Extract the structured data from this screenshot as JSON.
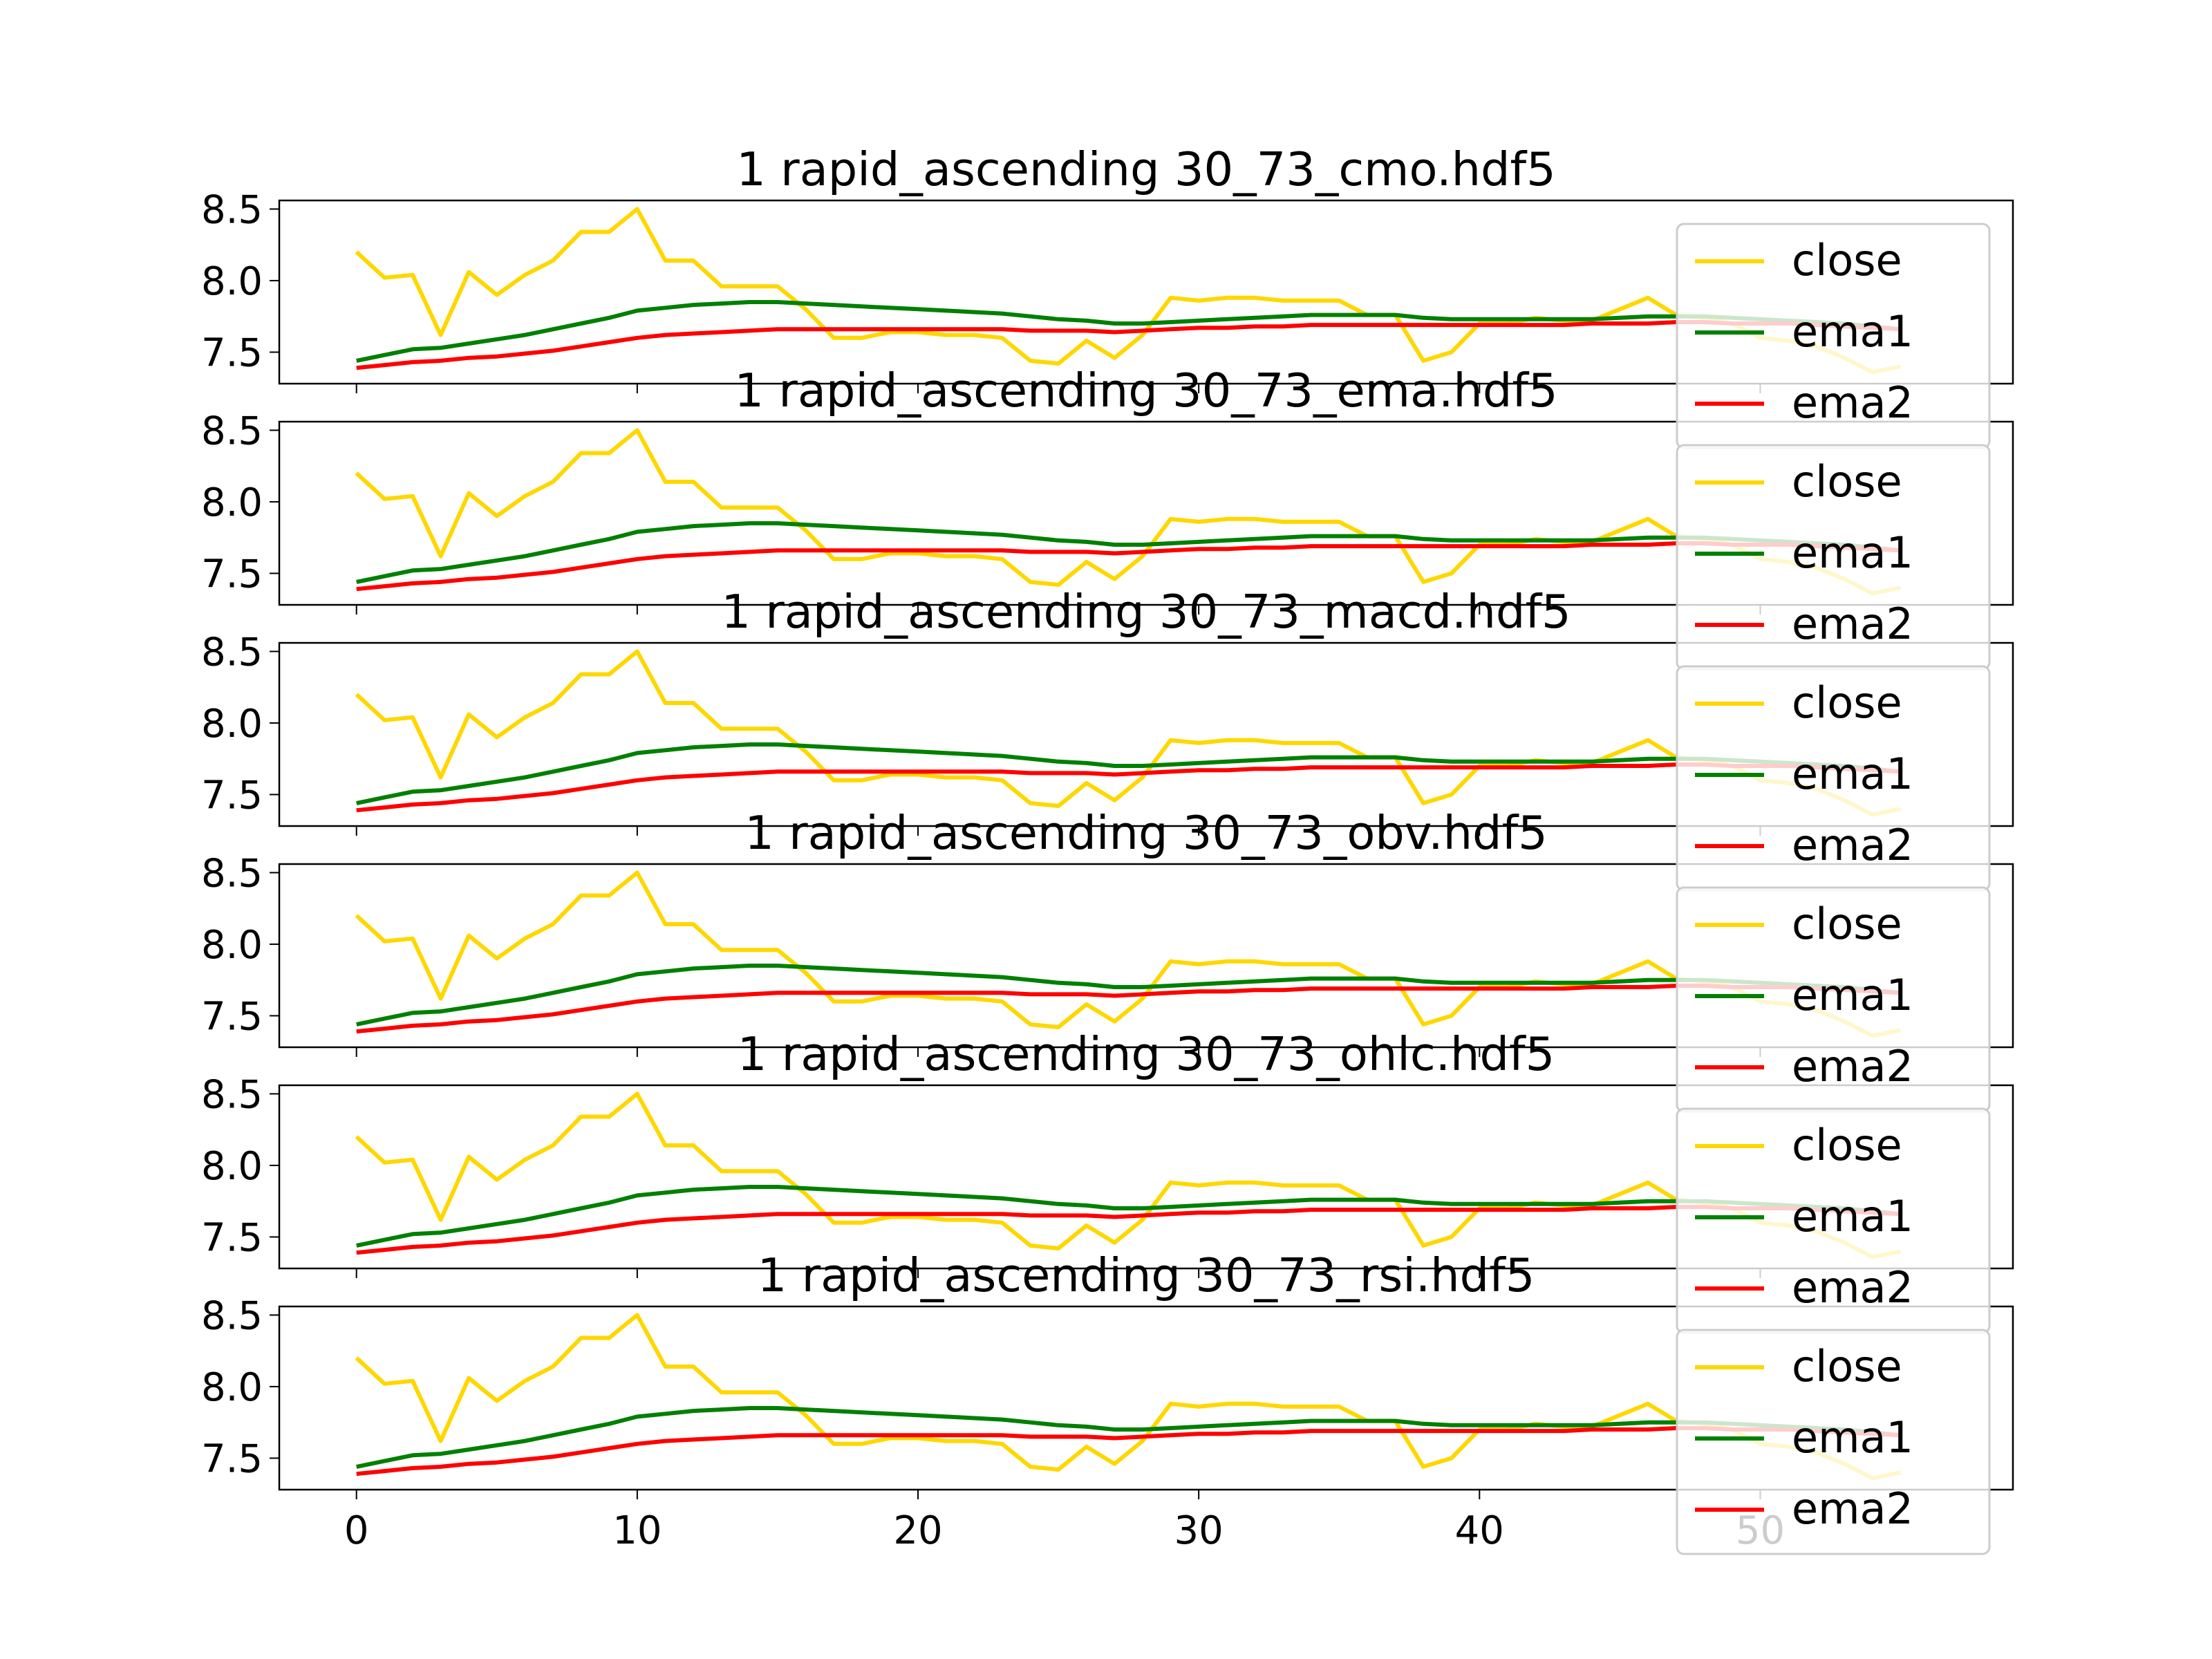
{
  "chart_data": [
    {
      "type": "line",
      "title": "1 rapid_ascending 30_73_cmo.hdf5",
      "x_ticks": [
        0,
        10,
        20,
        30,
        40,
        50
      ],
      "y_ticks": [
        "7.5",
        "8.0",
        "8.5"
      ],
      "x_tick_labels_shown": false,
      "legend": [
        "close",
        "ema1",
        "ema2"
      ],
      "legend_position": "right"
    },
    {
      "type": "line",
      "title": "1 rapid_ascending 30_73_ema.hdf5",
      "x_ticks": [
        0,
        10,
        20,
        30,
        40,
        50
      ],
      "y_ticks": [
        "7.5",
        "8.0",
        "8.5"
      ],
      "x_tick_labels_shown": false,
      "legend": [
        "close",
        "ema1",
        "ema2"
      ],
      "legend_position": "right"
    },
    {
      "type": "line",
      "title": "1 rapid_ascending 30_73_macd.hdf5",
      "x_ticks": [
        0,
        10,
        20,
        30,
        40,
        50
      ],
      "y_ticks": [
        "7.5",
        "8.0",
        "8.5"
      ],
      "x_tick_labels_shown": false,
      "legend": [
        "close",
        "ema1",
        "ema2"
      ],
      "legend_position": "right"
    },
    {
      "type": "line",
      "title": "1 rapid_ascending 30_73_obv.hdf5",
      "x_ticks": [
        0,
        10,
        20,
        30,
        40,
        50
      ],
      "y_ticks": [
        "7.5",
        "8.0",
        "8.5"
      ],
      "x_tick_labels_shown": false,
      "legend": [
        "close",
        "ema1",
        "ema2"
      ],
      "legend_position": "right"
    },
    {
      "type": "line",
      "title": "1 rapid_ascending 30_73_ohlc.hdf5",
      "x_ticks": [
        0,
        10,
        20,
        30,
        40,
        50
      ],
      "y_ticks": [
        "7.5",
        "8.0",
        "8.5"
      ],
      "x_tick_labels_shown": false,
      "legend": [
        "close",
        "ema1",
        "ema2"
      ],
      "legend_position": "right"
    },
    {
      "type": "line",
      "title": "1 rapid_ascending 30_73_rsi.hdf5",
      "x_ticks": [
        0,
        10,
        20,
        30,
        40,
        50
      ],
      "y_ticks": [
        "7.5",
        "8.0",
        "8.5"
      ],
      "x_tick_labels_shown": true,
      "legend": [
        "close",
        "ema1",
        "ema2"
      ],
      "legend_position": "right"
    }
  ],
  "shared": {
    "x": [
      0,
      1,
      2,
      3,
      4,
      5,
      6,
      7,
      8,
      9,
      10,
      11,
      12,
      13,
      14,
      15,
      16,
      17,
      18,
      19,
      20,
      21,
      22,
      23,
      24,
      25,
      26,
      27,
      28,
      29,
      30,
      31,
      32,
      33,
      34,
      35,
      36,
      37,
      38,
      39,
      40,
      41,
      42,
      43,
      44,
      45,
      46,
      47,
      48,
      49,
      50,
      51,
      52,
      53,
      54,
      55
    ],
    "xlim": [
      -2.75,
      59.0
    ],
    "ylim": [
      7.28,
      8.56
    ],
    "series": [
      {
        "name": "close",
        "color": "#FFD700",
        "values": [
          8.2,
          8.02,
          8.04,
          7.62,
          8.06,
          7.9,
          8.04,
          8.14,
          8.34,
          8.34,
          8.5,
          8.14,
          8.14,
          7.96,
          7.96,
          7.96,
          7.8,
          7.6,
          7.6,
          7.64,
          7.64,
          7.62,
          7.62,
          7.6,
          7.44,
          7.42,
          7.58,
          7.46,
          7.62,
          7.88,
          7.86,
          7.88,
          7.88,
          7.86,
          7.86,
          7.86,
          7.76,
          7.76,
          7.44,
          7.5,
          7.7,
          7.7,
          7.74,
          7.72,
          7.72,
          7.8,
          7.88,
          7.76,
          7.74,
          7.7,
          7.6,
          7.58,
          7.54,
          7.46,
          7.36,
          7.4
        ]
      },
      {
        "name": "ema1",
        "color": "#008000",
        "values": [
          7.44,
          7.48,
          7.52,
          7.53,
          7.56,
          7.59,
          7.62,
          7.66,
          7.7,
          7.74,
          7.79,
          7.81,
          7.83,
          7.84,
          7.85,
          7.85,
          7.84,
          7.83,
          7.82,
          7.81,
          7.8,
          7.79,
          7.78,
          7.77,
          7.75,
          7.73,
          7.72,
          7.7,
          7.7,
          7.71,
          7.72,
          7.73,
          7.74,
          7.75,
          7.76,
          7.76,
          7.76,
          7.76,
          7.74,
          7.73,
          7.73,
          7.73,
          7.73,
          7.73,
          7.73,
          7.74,
          7.75,
          7.75,
          7.75,
          7.74,
          7.73,
          7.72,
          7.71,
          7.7,
          7.68,
          7.66
        ]
      },
      {
        "name": "ema2",
        "color": "#FF0000",
        "values": [
          7.39,
          7.41,
          7.43,
          7.44,
          7.46,
          7.47,
          7.49,
          7.51,
          7.54,
          7.57,
          7.6,
          7.62,
          7.63,
          7.64,
          7.65,
          7.66,
          7.66,
          7.66,
          7.66,
          7.66,
          7.66,
          7.66,
          7.66,
          7.66,
          7.65,
          7.65,
          7.65,
          7.64,
          7.65,
          7.66,
          7.67,
          7.67,
          7.68,
          7.68,
          7.69,
          7.69,
          7.69,
          7.69,
          7.69,
          7.69,
          7.69,
          7.69,
          7.69,
          7.69,
          7.7,
          7.7,
          7.7,
          7.71,
          7.71,
          7.7,
          7.7,
          7.7,
          7.69,
          7.68,
          7.67,
          7.66
        ]
      }
    ]
  }
}
